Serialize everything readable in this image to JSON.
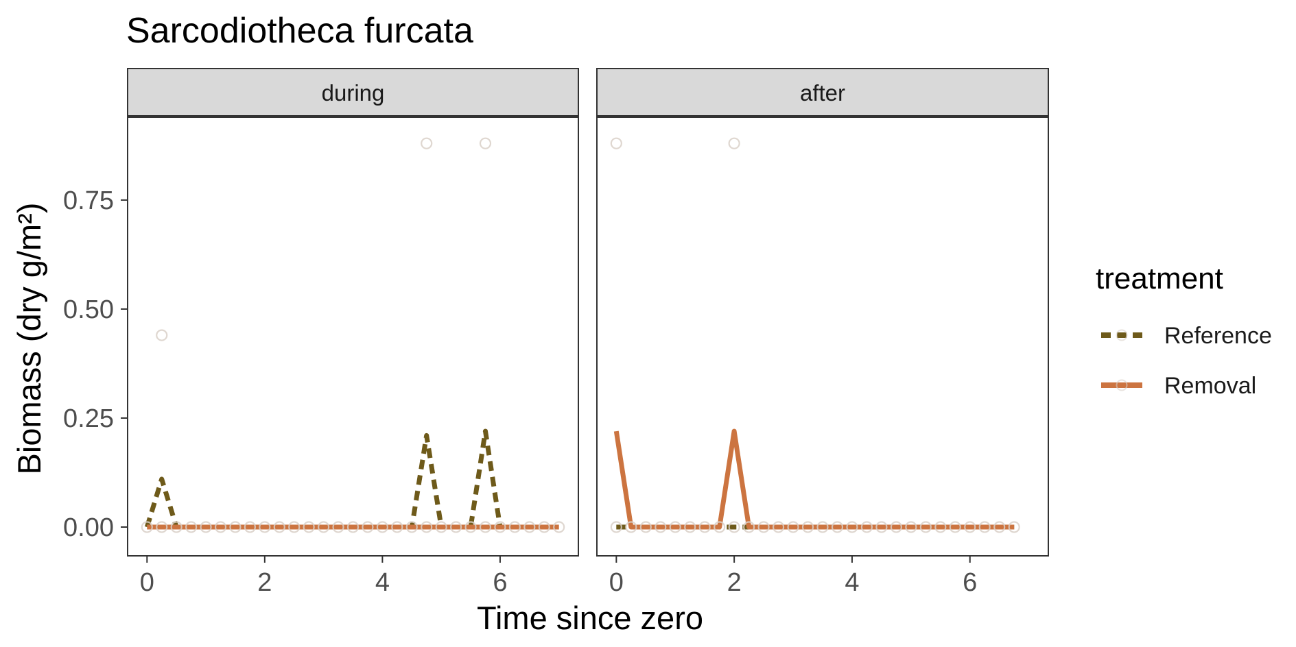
{
  "chart_data": {
    "type": "line",
    "title": "Sarcodiotheca furcata",
    "xlabel": "Time since zero",
    "ylabel": "Biomass (dry g/m²)",
    "xlim": [
      -0.33,
      7.33
    ],
    "ylim": [
      -0.066,
      0.94
    ],
    "x_ticks": [
      0,
      2,
      4,
      6
    ],
    "y_ticks": [
      0.0,
      0.25,
      0.5,
      0.75
    ],
    "x_tick_labels": [
      "0",
      "2",
      "4",
      "6"
    ],
    "y_tick_labels": [
      "0.00",
      "0.25",
      "0.50",
      "0.75"
    ],
    "grid": false,
    "legend": {
      "title": "treatment",
      "position": "right",
      "entries": [
        "Reference",
        "Removal"
      ]
    },
    "colors": {
      "Reference": "#6e5a1a",
      "Removal": "#cc7440",
      "points": "#d9d0c8",
      "strip_fill": "#d9d9d9"
    },
    "facets": [
      {
        "label": "during",
        "series": [
          {
            "name": "Reference",
            "x": [
              0,
              0.25,
              0.5,
              4.5,
              4.75,
              5.0,
              5.5,
              5.75,
              6.0
            ],
            "y": [
              0,
              0.11,
              0,
              0,
              0.21,
              0,
              0,
              0.22,
              0
            ]
          },
          {
            "name": "Removal",
            "x": [
              0,
              7
            ],
            "y": [
              0,
              0
            ]
          }
        ],
        "points": {
          "x": [
            0,
            0.25,
            0.5,
            0.75,
            1.0,
            1.25,
            1.5,
            1.75,
            2.0,
            2.25,
            2.5,
            2.75,
            3.0,
            3.25,
            3.5,
            3.75,
            4.0,
            4.25,
            4.5,
            4.75,
            5.0,
            5.25,
            5.5,
            5.75,
            6.0,
            6.25,
            6.5,
            6.75,
            7.0,
            0.25,
            4.75,
            5.75
          ],
          "y": [
            0,
            0,
            0,
            0,
            0,
            0,
            0,
            0,
            0,
            0,
            0,
            0,
            0,
            0,
            0,
            0,
            0,
            0,
            0,
            0,
            0,
            0,
            0,
            0,
            0,
            0,
            0,
            0,
            0,
            0.44,
            0.88,
            0.88
          ]
        }
      },
      {
        "label": "after",
        "series": [
          {
            "name": "Reference",
            "x": [
              0,
              6.75
            ],
            "y": [
              0,
              0
            ]
          },
          {
            "name": "Removal",
            "x": [
              0,
              0.25,
              1.75,
              2.0,
              2.25,
              6.75
            ],
            "y": [
              0.22,
              0,
              0,
              0.22,
              0,
              0
            ]
          }
        ],
        "points": {
          "x": [
            0,
            0.25,
            0.5,
            0.75,
            1.0,
            1.25,
            1.5,
            1.75,
            2.0,
            2.25,
            2.5,
            2.75,
            3.0,
            3.25,
            3.5,
            3.75,
            4.0,
            4.25,
            4.5,
            4.75,
            5.0,
            5.25,
            5.5,
            5.75,
            6.0,
            6.25,
            6.5,
            6.75,
            0,
            2.0
          ],
          "y": [
            0,
            0,
            0,
            0,
            0,
            0,
            0,
            0,
            0,
            0,
            0,
            0,
            0,
            0,
            0,
            0,
            0,
            0,
            0,
            0,
            0,
            0,
            0,
            0,
            0,
            0,
            0,
            0,
            0.88,
            0.88
          ]
        }
      }
    ]
  }
}
